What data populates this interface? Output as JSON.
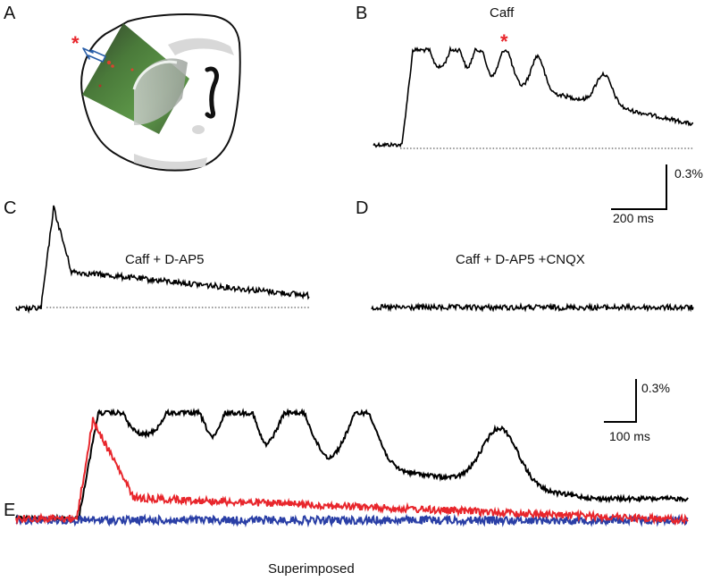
{
  "panels": {
    "a": {
      "letter": "A",
      "marker": "*"
    },
    "b": {
      "letter": "B",
      "title": "Caff",
      "marker": "*"
    },
    "c": {
      "letter": "C",
      "title": "Caff + D-AP5"
    },
    "d": {
      "letter": "D",
      "title": "Caff + D-AP5 +CNQX"
    },
    "e": {
      "letter": "E",
      "caption": "Superimposed"
    }
  },
  "scalebars": {
    "top": {
      "amplitude": "0.3%",
      "time": "200 ms"
    },
    "bottom": {
      "amplitude": "0.3%",
      "time": "100 ms"
    }
  },
  "colors": {
    "caff": "#000000",
    "dap5": "#e8262c",
    "cnqx": "#2a3fa6",
    "marker": "#e8262c"
  }
}
